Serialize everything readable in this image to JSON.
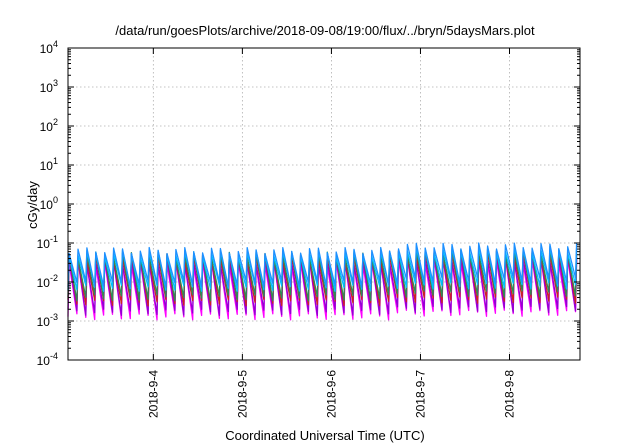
{
  "chart_data": {
    "type": "line",
    "title": "/data/run/goesPlots/archive/2018-09-08/19:00/flux/../bryn/5daysMars.plot",
    "xlabel": "Coordinated Universal Time (UTC)",
    "ylabel": "cGy/day",
    "y_scale": "log",
    "ylim": [
      0.0001,
      10000
    ],
    "y_ticks": [
      {
        "base": "10",
        "exp": "-4",
        "value": 0.0001
      },
      {
        "base": "10",
        "exp": "-3",
        "value": 0.001
      },
      {
        "base": "10",
        "exp": "-2",
        "value": 0.01
      },
      {
        "base": "10",
        "exp": "-1",
        "value": 0.1
      },
      {
        "base": "10",
        "exp": "0",
        "value": 1
      },
      {
        "base": "10",
        "exp": "1",
        "value": 10
      },
      {
        "base": "10",
        "exp": "2",
        "value": 100
      },
      {
        "base": "10",
        "exp": "3",
        "value": 1000
      },
      {
        "base": "10",
        "exp": "4",
        "value": 10000
      }
    ],
    "xlim": [
      "2018-09-03T01:00",
      "2018-09-08T19:00"
    ],
    "x_ticks": [
      "2018-9-4",
      "2018-9-5",
      "2018-9-6",
      "2018-9-7",
      "2018-9-8"
    ],
    "grid": true,
    "legend": "none",
    "cycles_per_day": 10,
    "series": [
      {
        "color": "#ff00ff",
        "peak": 0.03,
        "trough": 0.0013,
        "peak_late": 0.035,
        "trough_late": 0.0016
      },
      {
        "color": "#9400d3",
        "peak": 0.035,
        "trough": 0.0017,
        "peak_late": 0.042,
        "trough_late": 0.002
      },
      {
        "color": "#cc2222",
        "peak": 0.045,
        "trough": 0.003,
        "peak_late": 0.055,
        "trough_late": 0.0035
      },
      {
        "color": "#2e8b57",
        "peak": 0.05,
        "trough": 0.004,
        "peak_late": 0.06,
        "trough_late": 0.005
      },
      {
        "color": "#00bfff",
        "peak": 0.055,
        "trough": 0.007,
        "peak_late": 0.068,
        "trough_late": 0.008
      },
      {
        "color": "#1e90ff",
        "peak": 0.065,
        "trough": 0.009,
        "peak_late": 0.085,
        "trough_late": 0.011
      }
    ]
  }
}
